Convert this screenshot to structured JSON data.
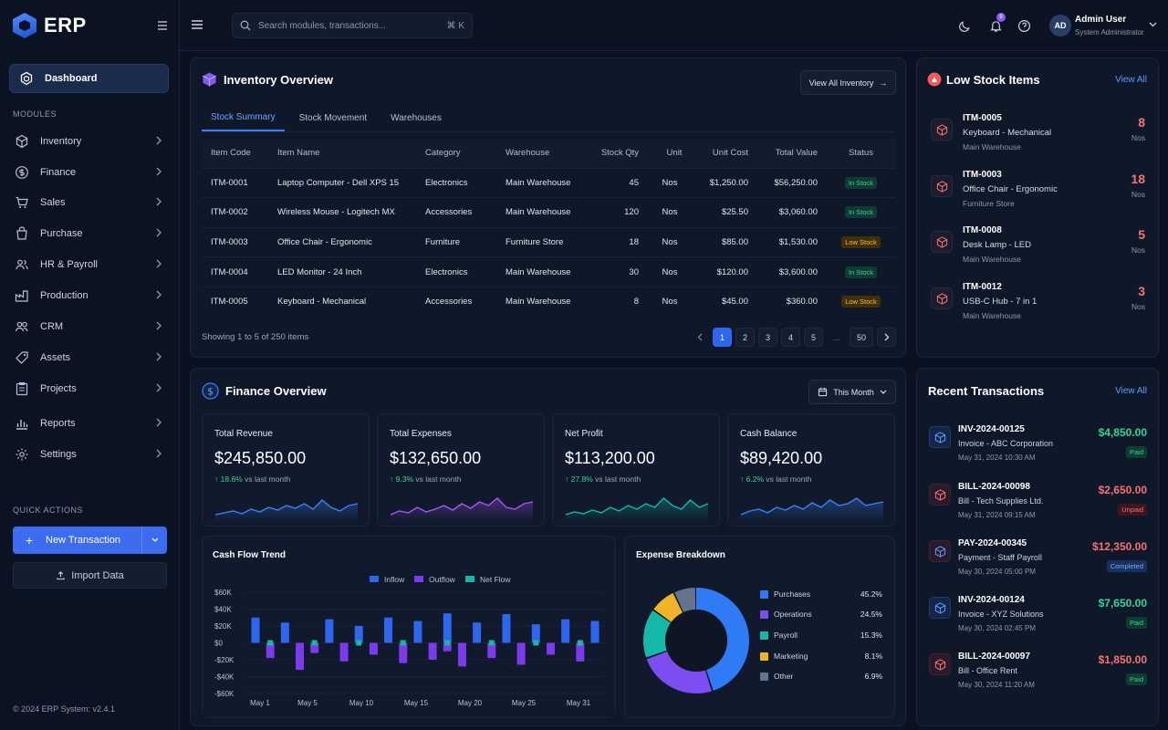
{
  "brand": {
    "name": "ERP"
  },
  "search": {
    "placeholder": "Search modules, transactions...",
    "shortcut": "⌘ K"
  },
  "topbar": {
    "notif_count": "9",
    "user_initials": "AD",
    "user_name": "Admin User",
    "user_role": "System Administrator"
  },
  "sidebar": {
    "active": "Dashboard",
    "modules_label": "MODULES",
    "items": [
      "Inventory",
      "Finance",
      "Sales",
      "Purchase",
      "HR & Payroll",
      "Production",
      "CRM",
      "Assets",
      "Projects"
    ],
    "reports": "Reports",
    "settings": "Settings",
    "quick_actions_label": "QUICK ACTIONS",
    "new_transaction": "New Transaction",
    "import_data": "Import Data",
    "footer": "© 2024 ERP System: v2.4.1"
  },
  "inventory": {
    "title": "Inventory Overview",
    "view_all": "View All Inventory",
    "tabs": [
      "Stock Summary",
      "Stock Movement",
      "Warehouses"
    ],
    "columns": [
      "Item Code",
      "Item Name",
      "Category",
      "Warehouse",
      "Stock Qty",
      "Unit",
      "Unit Cost",
      "Total Value",
      "Status"
    ],
    "rows": [
      [
        "ITM-0001",
        "Laptop Computer - Dell XPS 15",
        "Electronics",
        "Main Warehouse",
        "45",
        "Nos",
        "$1,250.00",
        "$56,250.00",
        "In Stock"
      ],
      [
        "ITM-0002",
        "Wireless Mouse - Logitech MX",
        "Accessories",
        "Main Warehouse",
        "120",
        "Nos",
        "$25.50",
        "$3,060.00",
        "In Stock"
      ],
      [
        "ITM-0003",
        "Office Chair - Ergonomic",
        "Furniture",
        "Furniture Store",
        "18",
        "Nos",
        "$85.00",
        "$1,530.00",
        "Low Stock"
      ],
      [
        "ITM-0004",
        "LED Monitor - 24 Inch",
        "Electronics",
        "Main Warehouse",
        "30",
        "Nos",
        "$120.00",
        "$3,600.00",
        "In Stock"
      ],
      [
        "ITM-0005",
        "Keyboard - Mechanical",
        "Accessories",
        "Main Warehouse",
        "8",
        "Nos",
        "$45.00",
        "$360.00",
        "Low Stock"
      ]
    ],
    "showing": "Showing 1 to 5 of 250 items",
    "pages": [
      "1",
      "2",
      "3",
      "4",
      "5",
      "...",
      "50"
    ]
  },
  "low_stock": {
    "title": "Low Stock Items",
    "view_all": "View All",
    "items": [
      {
        "code": "ITM-0005",
        "name": "Keyboard - Mechanical",
        "location": "Main Warehouse",
        "qty": "8",
        "unit": "Nos"
      },
      {
        "code": "ITM-0003",
        "name": "Office Chair - Ergonomic",
        "location": "Furniture Store",
        "qty": "18",
        "unit": "Nos"
      },
      {
        "code": "ITM-0008",
        "name": "Desk Lamp - LED",
        "location": "Main Warehouse",
        "qty": "5",
        "unit": "Nos"
      },
      {
        "code": "ITM-0012",
        "name": "USB-C Hub - 7 in 1",
        "location": "Main Warehouse",
        "qty": "3",
        "unit": "Nos"
      }
    ]
  },
  "finance": {
    "title": "Finance Overview",
    "period": "This Month",
    "kpis": [
      {
        "label": "Total Revenue",
        "value": "$245,850.00",
        "delta": "18.6%",
        "suffix": "vs last month",
        "color": "#3b82f6"
      },
      {
        "label": "Total Expenses",
        "value": "$132,650.00",
        "delta": "9.3%",
        "suffix": "vs last month",
        "color": "#a855f7"
      },
      {
        "label": "Net Profit",
        "value": "$113,200.00",
        "delta": "27.8%",
        "suffix": "vs last month",
        "color": "#14b8a6"
      },
      {
        "label": "Cash Balance",
        "value": "$89,420.00",
        "delta": "6.2%",
        "suffix": "vs last month",
        "color": "#3b82f6"
      }
    ]
  },
  "cashflow": {
    "title": "Cash Flow Trend",
    "legend": [
      "Inflow",
      "Outflow",
      "Net Flow"
    ],
    "colors": {
      "inflow": "#2f66f0",
      "outflow": "#7c3aed",
      "net": "#14b8a6"
    },
    "y_ticks": [
      "$60K",
      "$40K",
      "$20K",
      "$0",
      "-$20K",
      "-$40K",
      "-$60K"
    ],
    "x_ticks": [
      "May 1",
      "May 5",
      "May 10",
      "May 15",
      "May 20",
      "May 25",
      "May 31"
    ]
  },
  "expense": {
    "title": "Expense Breakdown",
    "items": [
      {
        "label": "Purchases",
        "pct": "45.2%",
        "value": 45.2,
        "color": "#2f7bf5"
      },
      {
        "label": "Operations",
        "pct": "24.5%",
        "value": 24.5,
        "color": "#7c4df0"
      },
      {
        "label": "Payroll",
        "pct": "15.3%",
        "value": 15.3,
        "color": "#14b8a6"
      },
      {
        "label": "Marketing",
        "pct": "8.1%",
        "value": 8.1,
        "color": "#f0b429"
      },
      {
        "label": "Other",
        "pct": "6.9%",
        "value": 6.9,
        "color": "#64748b"
      }
    ]
  },
  "transactions": {
    "title": "Recent Transactions",
    "view_all": "View All",
    "items": [
      {
        "id": "INV-2024-00125",
        "desc": "Invoice - ABC Corporation",
        "date": "May 31, 2024 10:30 AM",
        "amount": "$4,850.00",
        "status": "Paid",
        "kind": "in"
      },
      {
        "id": "BILL-2024-00098",
        "desc": "Bill - Tech Supplies Ltd.",
        "date": "May 31, 2024 09:15 AM",
        "amount": "$2,650.00",
        "status": "Unpaid",
        "kind": "out"
      },
      {
        "id": "PAY-2024-00345",
        "desc": "Payment - Staff Payroll",
        "date": "May 30, 2024 05:00 PM",
        "amount": "$12,350.00",
        "status": "Completed",
        "kind": "out"
      },
      {
        "id": "INV-2024-00124",
        "desc": "Invoice - XYZ Solutions",
        "date": "May 30, 2024 02:45 PM",
        "amount": "$7,650.00",
        "status": "Paid",
        "kind": "in"
      },
      {
        "id": "BILL-2024-00097",
        "desc": "Bill - Office Rent",
        "date": "May 30, 2024 11:20 AM",
        "amount": "$1,850.00",
        "status": "Paid",
        "kind": "out"
      }
    ]
  }
}
